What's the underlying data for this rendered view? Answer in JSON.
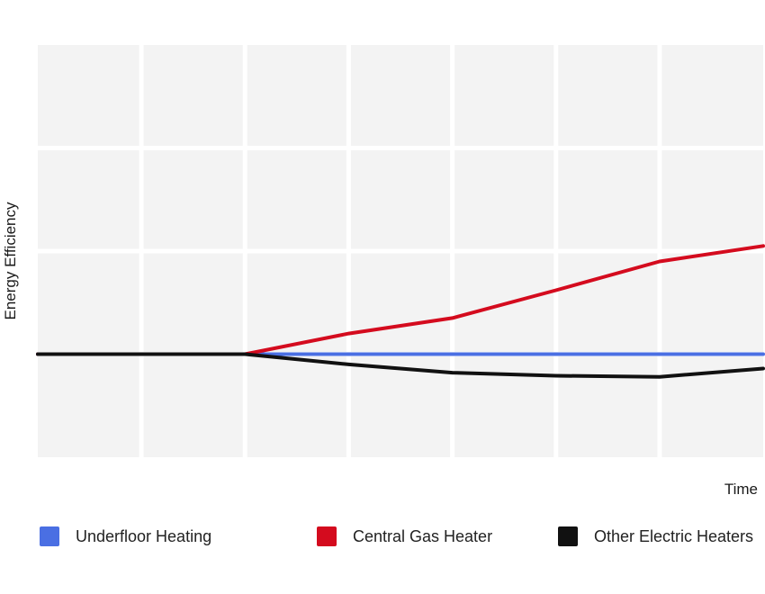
{
  "chart_data": {
    "type": "line",
    "title": "",
    "xlabel": "Time",
    "ylabel": "Energy Efficiency",
    "x_ticks_labeled": false,
    "y_ticks_labeled": false,
    "grid": true,
    "legend_position": "bottom",
    "x": [
      0,
      1,
      2,
      3,
      4,
      5,
      6,
      7
    ],
    "xlim": [
      0,
      7
    ],
    "ylim": [
      -1,
      3
    ],
    "series": [
      {
        "name": "Underfloor Heating",
        "color": "#4a6fe3",
        "values": [
          0,
          0,
          0,
          0,
          0,
          0,
          0,
          0
        ]
      },
      {
        "name": "Central Gas Heater",
        "color": "#d40b1e",
        "values": [
          0,
          0,
          0,
          0.2,
          0.35,
          0.62,
          0.9,
          1.05
        ]
      },
      {
        "name": "Other Electric Heaters",
        "color": "#111111",
        "values": [
          0,
          0,
          0,
          -0.1,
          -0.18,
          -0.21,
          -0.22,
          -0.14
        ]
      }
    ]
  }
}
